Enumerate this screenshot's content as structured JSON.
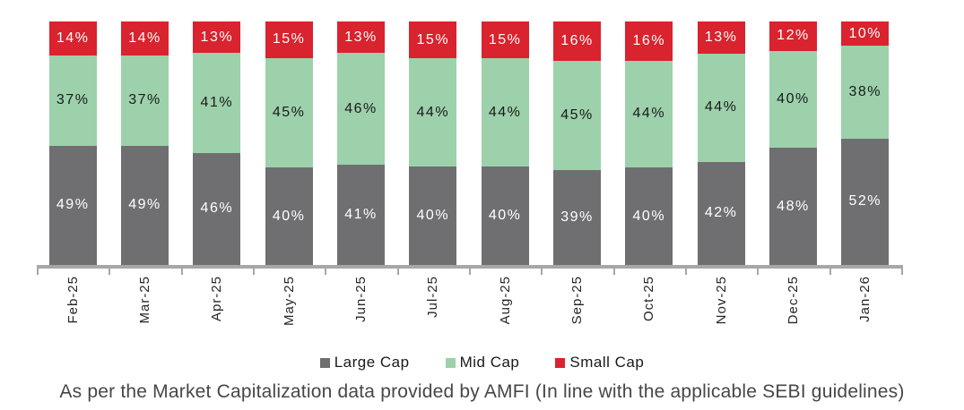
{
  "chart_data": {
    "type": "bar",
    "stacked": true,
    "percent_stacked": true,
    "categories": [
      "Feb-25",
      "Mar-25",
      "Apr-25",
      "May-25",
      "Jun-25",
      "Jul-25",
      "Aug-25",
      "Sep-25",
      "Oct-25",
      "Nov-25",
      "Dec-25",
      "Jan-26"
    ],
    "series": [
      {
        "name": "Large Cap",
        "color": "#6F6F71",
        "label_color": "#ffffff",
        "values": [
          49,
          49,
          46,
          40,
          41,
          40,
          40,
          39,
          40,
          42,
          48,
          52
        ]
      },
      {
        "name": "Mid Cap",
        "color": "#9CD1AB",
        "label_color": "#1a1a1a",
        "values": [
          37,
          37,
          41,
          45,
          46,
          44,
          44,
          45,
          44,
          44,
          40,
          38
        ]
      },
      {
        "name": "Small Cap",
        "color": "#D9232E",
        "label_color": "#ffffff",
        "values": [
          14,
          14,
          13,
          15,
          13,
          15,
          15,
          16,
          16,
          13,
          12,
          10
        ]
      }
    ],
    "value_suffix": "%",
    "legend_position": "bottom",
    "axis_color": "#a7a7a7",
    "title": "",
    "xlabel": "",
    "ylabel": ""
  },
  "caption": "As per the Market Capitalization data provided by AMFI (In line with the applicable SEBI guidelines)"
}
